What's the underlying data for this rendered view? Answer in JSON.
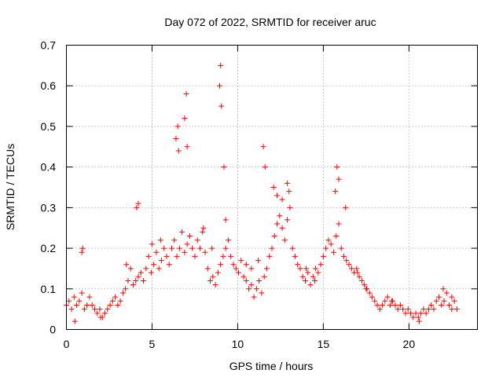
{
  "chart_data": {
    "type": "scatter",
    "title": "Day 072 of 2022, SRMTID for receiver aruc",
    "xlabel": "GPS time / hours",
    "ylabel": "SRMTID / TECUs",
    "xlim": [
      0,
      24
    ],
    "ylim": [
      0,
      0.7
    ],
    "xticks": [
      0,
      5,
      10,
      15,
      20
    ],
    "yticks": [
      0,
      0.1,
      0.2,
      0.3,
      0.4,
      0.5,
      0.6,
      0.7
    ],
    "xtick_labels": [
      "0",
      "5",
      "10",
      "15",
      "20"
    ],
    "ytick_labels": [
      "0",
      "0.1",
      "0.2",
      "0.3",
      "0.4",
      "0.5",
      "0.6",
      "0.7"
    ],
    "grid": true,
    "marker": "+",
    "color": "#ff0000",
    "series": [
      {
        "name": "SRMTID",
        "x": [
          0.0,
          0.15,
          0.3,
          0.45,
          0.6,
          0.75,
          0.9,
          1.05,
          1.2,
          1.35,
          1.5,
          1.65,
          1.8,
          1.95,
          2.1,
          2.25,
          2.4,
          2.55,
          2.7,
          2.85,
          3.0,
          3.15,
          3.3,
          3.45,
          3.6,
          3.75,
          3.9,
          4.05,
          4.2,
          4.35,
          4.5,
          4.65,
          4.8,
          4.95,
          5.1,
          5.25,
          5.4,
          5.55,
          5.7,
          5.85,
          6.0,
          6.15,
          6.3,
          6.45,
          6.6,
          6.75,
          6.9,
          7.05,
          7.2,
          7.35,
          7.5,
          7.65,
          7.8,
          7.95,
          8.1,
          8.25,
          8.4,
          8.55,
          8.7,
          8.85,
          9.0,
          9.15,
          9.3,
          9.45,
          9.6,
          9.75,
          9.9,
          10.05,
          10.2,
          10.35,
          10.5,
          10.65,
          10.8,
          10.95,
          11.1,
          11.25,
          11.4,
          11.55,
          11.7,
          11.85,
          12.0,
          12.15,
          12.3,
          12.45,
          12.6,
          12.75,
          12.9,
          13.05,
          13.2,
          13.35,
          13.5,
          13.65,
          13.8,
          13.95,
          14.1,
          14.25,
          14.4,
          14.55,
          14.7,
          14.85,
          15.0,
          15.15,
          15.3,
          15.45,
          15.6,
          15.75,
          15.9,
          16.05,
          16.2,
          16.35,
          16.5,
          16.65,
          16.8,
          16.95,
          17.1,
          17.25,
          17.4,
          17.55,
          17.7,
          17.85,
          18.0,
          18.15,
          18.3,
          18.45,
          18.6,
          18.75,
          18.9,
          19.05,
          19.2,
          19.35,
          19.5,
          19.65,
          19.8,
          19.95,
          20.1,
          20.25,
          20.4,
          20.55,
          20.7,
          20.85,
          21.0,
          21.15,
          21.3,
          21.45,
          21.6,
          21.75,
          21.9,
          22.05,
          22.2,
          22.35,
          22.5,
          22.65,
          22.8,
          0.9,
          0.95,
          4.1,
          4.2,
          6.4,
          6.5,
          6.55,
          6.9,
          7.0,
          7.05,
          8.95,
          9.0,
          9.05,
          9.2,
          9.3,
          11.5,
          11.6,
          12.1,
          12.3,
          12.6,
          12.9,
          13.0,
          15.7,
          15.8,
          15.9,
          16.3,
          3.5,
          5.0,
          5.5,
          8.0,
          8.5,
          10.5,
          10.8,
          11.2,
          14.0,
          14.5,
          17.0,
          17.5,
          19.0,
          22.0,
          22.5,
          0.5,
          2.0,
          20.6
        ],
        "y": [
          0.06,
          0.07,
          0.05,
          0.08,
          0.06,
          0.07,
          0.09,
          0.05,
          0.06,
          0.08,
          0.06,
          0.05,
          0.04,
          0.05,
          0.03,
          0.04,
          0.05,
          0.06,
          0.07,
          0.08,
          0.06,
          0.07,
          0.09,
          0.1,
          0.12,
          0.15,
          0.11,
          0.12,
          0.13,
          0.14,
          0.12,
          0.15,
          0.18,
          0.14,
          0.16,
          0.19,
          0.15,
          0.17,
          0.2,
          0.18,
          0.16,
          0.2,
          0.22,
          0.18,
          0.2,
          0.24,
          0.19,
          0.21,
          0.23,
          0.2,
          0.18,
          0.22,
          0.2,
          0.24,
          0.19,
          0.15,
          0.12,
          0.13,
          0.11,
          0.14,
          0.16,
          0.18,
          0.2,
          0.22,
          0.18,
          0.16,
          0.15,
          0.14,
          0.17,
          0.13,
          0.12,
          0.1,
          0.11,
          0.08,
          0.1,
          0.12,
          0.09,
          0.13,
          0.15,
          0.18,
          0.2,
          0.23,
          0.26,
          0.28,
          0.25,
          0.22,
          0.27,
          0.3,
          0.2,
          0.18,
          0.16,
          0.15,
          0.13,
          0.12,
          0.14,
          0.11,
          0.13,
          0.15,
          0.14,
          0.16,
          0.18,
          0.2,
          0.22,
          0.21,
          0.19,
          0.23,
          0.26,
          0.2,
          0.18,
          0.17,
          0.16,
          0.15,
          0.14,
          0.15,
          0.13,
          0.12,
          0.11,
          0.1,
          0.09,
          0.08,
          0.07,
          0.06,
          0.05,
          0.06,
          0.07,
          0.08,
          0.06,
          0.07,
          0.06,
          0.05,
          0.06,
          0.05,
          0.04,
          0.05,
          0.04,
          0.03,
          0.04,
          0.03,
          0.04,
          0.05,
          0.04,
          0.05,
          0.06,
          0.05,
          0.07,
          0.08,
          0.06,
          0.07,
          0.09,
          0.06,
          0.05,
          0.07,
          0.05,
          0.19,
          0.2,
          0.3,
          0.31,
          0.47,
          0.5,
          0.44,
          0.52,
          0.58,
          0.45,
          0.6,
          0.65,
          0.55,
          0.4,
          0.27,
          0.45,
          0.4,
          0.35,
          0.33,
          0.32,
          0.36,
          0.34,
          0.34,
          0.4,
          0.37,
          0.3,
          0.16,
          0.21,
          0.22,
          0.25,
          0.2,
          0.16,
          0.15,
          0.17,
          0.15,
          0.12,
          0.14,
          0.1,
          0.07,
          0.1,
          0.08,
          0.02,
          0.03,
          0.02
        ]
      }
    ]
  }
}
